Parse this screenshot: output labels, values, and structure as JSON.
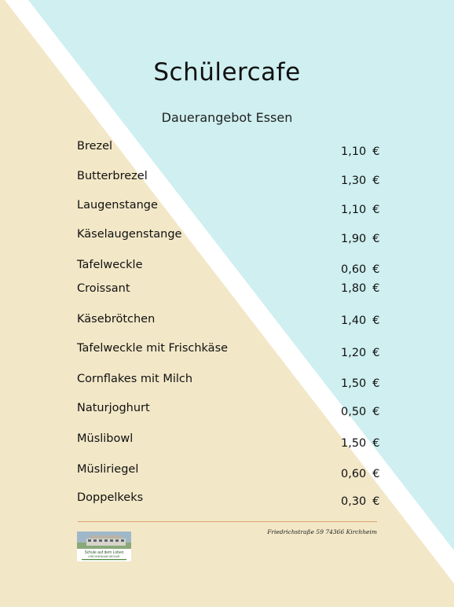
{
  "title": "Schülercafe",
  "subtitle": "Dauerangebot Essen",
  "currency": "€",
  "items": [
    {
      "name": "Brezel",
      "price": "1,10"
    },
    {
      "name": "Butterbrezel",
      "price": "1,30"
    },
    {
      "name": "Laugenstange",
      "price": "1,10"
    },
    {
      "name": "Käselaugenstange",
      "price": "1,90"
    },
    {
      "name": "Tafelweckle",
      "price": "0,60"
    },
    {
      "name": "Croissant",
      "price": "1,80"
    },
    {
      "name": "Käsebrötchen",
      "price": "1,40"
    },
    {
      "name": "Tafelweckle mit Frischkäse",
      "price": "1,20"
    },
    {
      "name": "Cornflakes mit Milch",
      "price": "1,50"
    },
    {
      "name": "Naturjoghurt",
      "price": "0,50"
    },
    {
      "name": "Müslibowl",
      "price": "1,50"
    },
    {
      "name": "Müsliriegel",
      "price": "0,60"
    },
    {
      "name": "Doppelkeks",
      "price": "0,30"
    }
  ],
  "footer": {
    "address": "Friedrichstraße 59 74366 Kirchheim",
    "logo_line1": "Schule auf dem Loben",
    "logo_line2": "KIRCHHEIM AM NECKAR"
  },
  "colors": {
    "cream": "#f2e7c7",
    "light_blue": "#cfeff0",
    "rule": "#d9a46b"
  }
}
